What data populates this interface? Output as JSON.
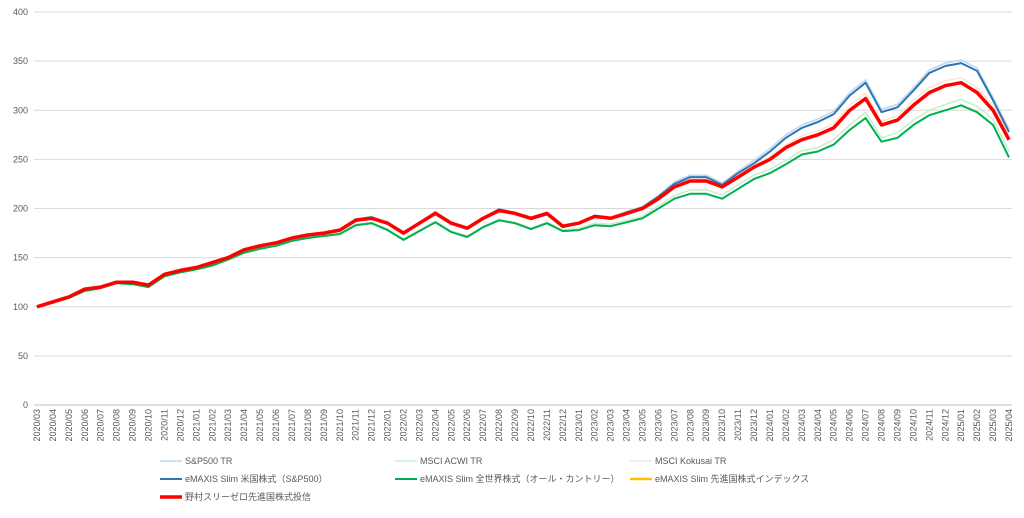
{
  "chart_data": {
    "type": "line",
    "categories": [
      "2020/03",
      "2020/04",
      "2020/05",
      "2020/06",
      "2020/07",
      "2020/08",
      "2020/09",
      "2020/10",
      "2020/11",
      "2020/12",
      "2021/01",
      "2021/02",
      "2021/03",
      "2021/04",
      "2021/05",
      "2021/06",
      "2021/07",
      "2021/08",
      "2021/09",
      "2021/10",
      "2021/11",
      "2021/12",
      "2022/01",
      "2022/02",
      "2022/03",
      "2022/04",
      "2022/05",
      "2022/06",
      "2022/07",
      "2022/08",
      "2022/09",
      "2022/10",
      "2022/11",
      "2022/12",
      "2023/01",
      "2023/02",
      "2023/03",
      "2023/04",
      "2023/05",
      "2023/06",
      "2023/07",
      "2023/08",
      "2023/09",
      "2023/10",
      "2023/11",
      "2023/12",
      "2024/01",
      "2024/02",
      "2024/03",
      "2024/04",
      "2024/05",
      "2024/06",
      "2024/07",
      "2024/08",
      "2024/09",
      "2024/10",
      "2024/11",
      "2024/12",
      "2025/01",
      "2025/02",
      "2025/03",
      "2025/04"
    ],
    "ylim": [
      0,
      400
    ],
    "yticks": [
      0,
      50,
      100,
      150,
      200,
      250,
      300,
      350,
      400
    ],
    "grid": true,
    "series": [
      {
        "name": "S&P500 TR",
        "color": "#bdd7ee",
        "values": [
          100,
          104,
          110,
          117,
          120,
          126,
          124,
          121,
          132,
          136,
          139,
          144,
          151,
          158,
          161,
          165,
          170,
          173,
          175,
          178,
          189,
          192,
          186,
          176,
          186,
          197,
          186,
          181,
          191,
          200,
          196,
          190,
          195,
          182,
          186,
          193,
          191,
          197,
          202,
          213,
          227,
          234,
          234,
          226,
          238,
          249,
          261,
          275,
          285,
          291,
          299,
          318,
          331,
          301,
          306,
          323,
          341,
          348,
          351,
          343,
          313,
          281
        ]
      },
      {
        "name": "MSCI ACWI TR",
        "color": "#c6efce",
        "values": [
          100,
          104,
          109,
          116,
          119,
          124,
          123,
          120,
          131,
          135,
          138,
          143,
          149,
          156,
          160,
          163,
          168,
          171,
          173,
          175,
          184,
          186,
          179,
          169,
          178,
          187,
          177,
          172,
          182,
          189,
          186,
          180,
          186,
          178,
          180,
          185,
          184,
          188,
          192,
          203,
          213,
          219,
          219,
          214,
          224,
          234,
          240,
          249,
          259,
          262,
          270,
          285,
          298,
          272,
          277,
          290,
          300,
          306,
          311,
          304,
          291,
          258
        ]
      },
      {
        "name": "MSCI Kokusai TR",
        "color": "#fce4d6",
        "values": [
          100,
          105,
          110,
          118,
          121,
          126,
          126,
          123,
          134,
          138,
          141,
          146,
          151,
          159,
          163,
          166,
          171,
          174,
          176,
          179,
          189,
          191,
          186,
          176,
          186,
          196,
          186,
          181,
          191,
          199,
          196,
          191,
          196,
          183,
          186,
          193,
          191,
          196,
          201,
          212,
          224,
          230,
          230,
          224,
          235,
          245,
          253,
          265,
          274,
          279,
          286,
          305,
          317,
          289,
          294,
          310,
          323,
          330,
          333,
          323,
          305,
          275
        ]
      },
      {
        "name": "eMAXIS Slim 米国株式（S&P500）",
        "color": "#2e75b6",
        "values": [
          100,
          104,
          110,
          117,
          120,
          125,
          124,
          121,
          132,
          136,
          139,
          144,
          150,
          158,
          161,
          165,
          170,
          173,
          175,
          178,
          189,
          191,
          185,
          175,
          185,
          196,
          185,
          180,
          190,
          199,
          195,
          189,
          194,
          181,
          185,
          192,
          190,
          196,
          201,
          212,
          225,
          232,
          232,
          224,
          236,
          246,
          258,
          272,
          282,
          288,
          296,
          315,
          328,
          298,
          303,
          320,
          338,
          345,
          348,
          340,
          310,
          278
        ]
      },
      {
        "name": "eMAXIS Slim 全世界株式（オール・カントリー）",
        "color": "#00b050",
        "values": [
          100,
          104,
          109,
          116,
          119,
          124,
          123,
          120,
          131,
          135,
          138,
          142,
          148,
          155,
          159,
          162,
          167,
          170,
          172,
          174,
          183,
          185,
          178,
          168,
          177,
          186,
          176,
          171,
          181,
          188,
          185,
          179,
          185,
          177,
          178,
          183,
          182,
          186,
          190,
          200,
          210,
          215,
          215,
          210,
          220,
          230,
          236,
          245,
          255,
          258,
          265,
          280,
          292,
          268,
          272,
          285,
          295,
          300,
          305,
          298,
          285,
          252
        ]
      },
      {
        "name": "eMAXIS Slim 先進国株式インデックス",
        "color": "#ffc000",
        "values": [
          100,
          105,
          110,
          118,
          120,
          125,
          125,
          122,
          133,
          137,
          140,
          145,
          150,
          158,
          162,
          165,
          170,
          173,
          175,
          178,
          188,
          190,
          185,
          175,
          185,
          195,
          185,
          180,
          190,
          198,
          195,
          190,
          195,
          182,
          185,
          192,
          190,
          195,
          200,
          210,
          222,
          228,
          228,
          222,
          232,
          242,
          250,
          262,
          270,
          275,
          282,
          300,
          312,
          285,
          290,
          305,
          318,
          325,
          328,
          318,
          300,
          270
        ]
      },
      {
        "name": "野村スリーゼロ先進国株式投信",
        "color": "#ff0000",
        "values": [
          100,
          105,
          110,
          118,
          120,
          125,
          125,
          122,
          133,
          137,
          140,
          145,
          150,
          158,
          162,
          165,
          170,
          173,
          175,
          178,
          188,
          190,
          185,
          175,
          185,
          195,
          185,
          180,
          190,
          198,
          195,
          190,
          195,
          182,
          185,
          192,
          190,
          195,
          200,
          210,
          222,
          228,
          228,
          222,
          232,
          242,
          250,
          262,
          270,
          275,
          282,
          300,
          312,
          285,
          290,
          305,
          318,
          325,
          328,
          318,
          300,
          270
        ]
      }
    ]
  }
}
